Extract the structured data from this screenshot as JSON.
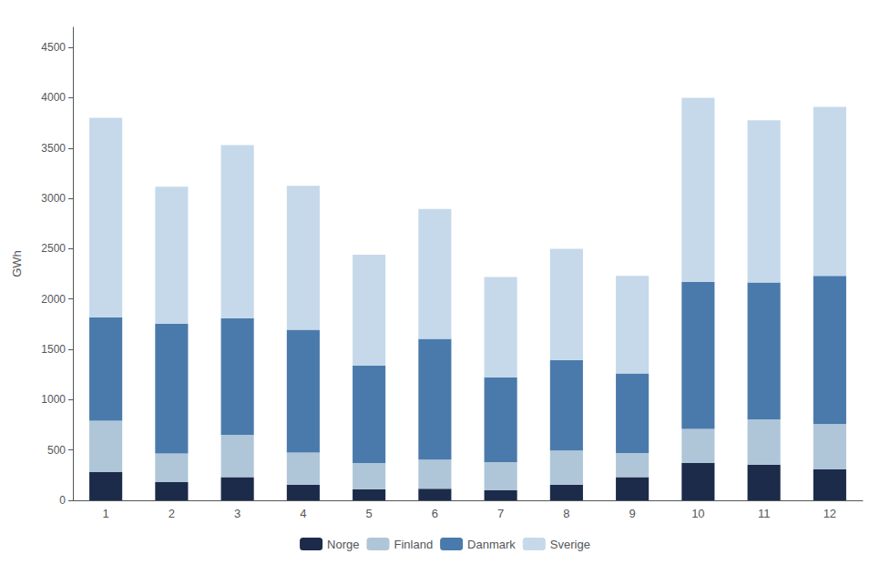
{
  "chart_data": {
    "type": "bar",
    "stacked": true,
    "categories": [
      "1",
      "2",
      "3",
      "4",
      "5",
      "6",
      "7",
      "8",
      "9",
      "10",
      "11",
      "12"
    ],
    "series": [
      {
        "name": "Norge",
        "color": "#1c2b4a",
        "values": [
          280,
          180,
          230,
          155,
          110,
          115,
          100,
          155,
          230,
          370,
          355,
          310
        ]
      },
      {
        "name": "Finland",
        "color": "#aec6d8",
        "values": [
          510,
          285,
          420,
          320,
          260,
          290,
          280,
          340,
          240,
          340,
          450,
          450
        ]
      },
      {
        "name": "Danmark",
        "color": "#4a7aab",
        "values": [
          1030,
          1290,
          1160,
          1220,
          970,
          1200,
          840,
          900,
          790,
          1460,
          1360,
          1470
        ]
      },
      {
        "name": "Sverige",
        "color": "#c5d9ea",
        "values": [
          1980,
          1360,
          1720,
          1430,
          1100,
          1290,
          1000,
          1105,
          970,
          1830,
          1610,
          1680
        ]
      }
    ],
    "ylabel": "GWh",
    "ylim": [
      0,
      4700
    ],
    "yticks": [
      0,
      500,
      1000,
      1500,
      2000,
      2500,
      3000,
      3500,
      4000,
      4500
    ],
    "grid": false,
    "legend": "bottom"
  }
}
